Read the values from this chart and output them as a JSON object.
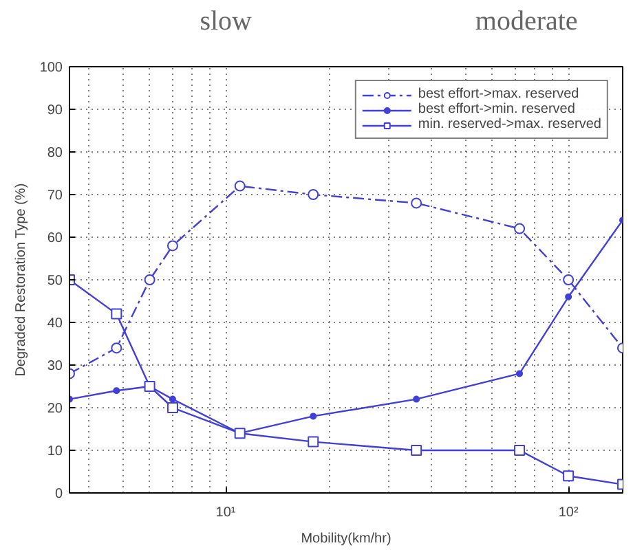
{
  "chart_data": {
    "type": "line",
    "xlabel": "Mobility(km/hr)",
    "ylabel": "Degraded Restoration Type (%)",
    "annotations": [
      "slow",
      "moderate"
    ],
    "x": [
      3.5,
      4.8,
      6,
      7,
      11,
      18,
      36,
      72,
      100,
      144
    ],
    "series": [
      {
        "name": "best effort->max. reserved",
        "color": "#4040d8",
        "marker": "circle",
        "line_style": "dashed",
        "values": [
          28,
          34,
          50,
          58,
          72,
          70,
          68,
          62,
          50,
          34
        ]
      },
      {
        "name": "best effort->min. reserved",
        "color": "#4040d8",
        "marker": "dot",
        "line_style": "solid",
        "values": [
          22,
          24,
          25,
          22,
          14,
          18,
          22,
          28,
          46,
          64
        ]
      },
      {
        "name": "min. reserved->max. reserved",
        "color": "#4040d8",
        "marker": "square",
        "line_style": "solid",
        "values": [
          50,
          42,
          25,
          20,
          14,
          12,
          10,
          10,
          4,
          2
        ]
      }
    ],
    "log": "x",
    "xlim": [
      3.5,
      144
    ],
    "xticks": [
      {
        "value": 10,
        "label": "10¹"
      },
      {
        "value": 100,
        "label": "10²"
      }
    ],
    "ylim": [
      0,
      100
    ],
    "yticks": [
      0,
      10,
      20,
      30,
      40,
      50,
      60,
      70,
      80,
      90,
      100
    ],
    "grid": true,
    "legend": "top right"
  }
}
